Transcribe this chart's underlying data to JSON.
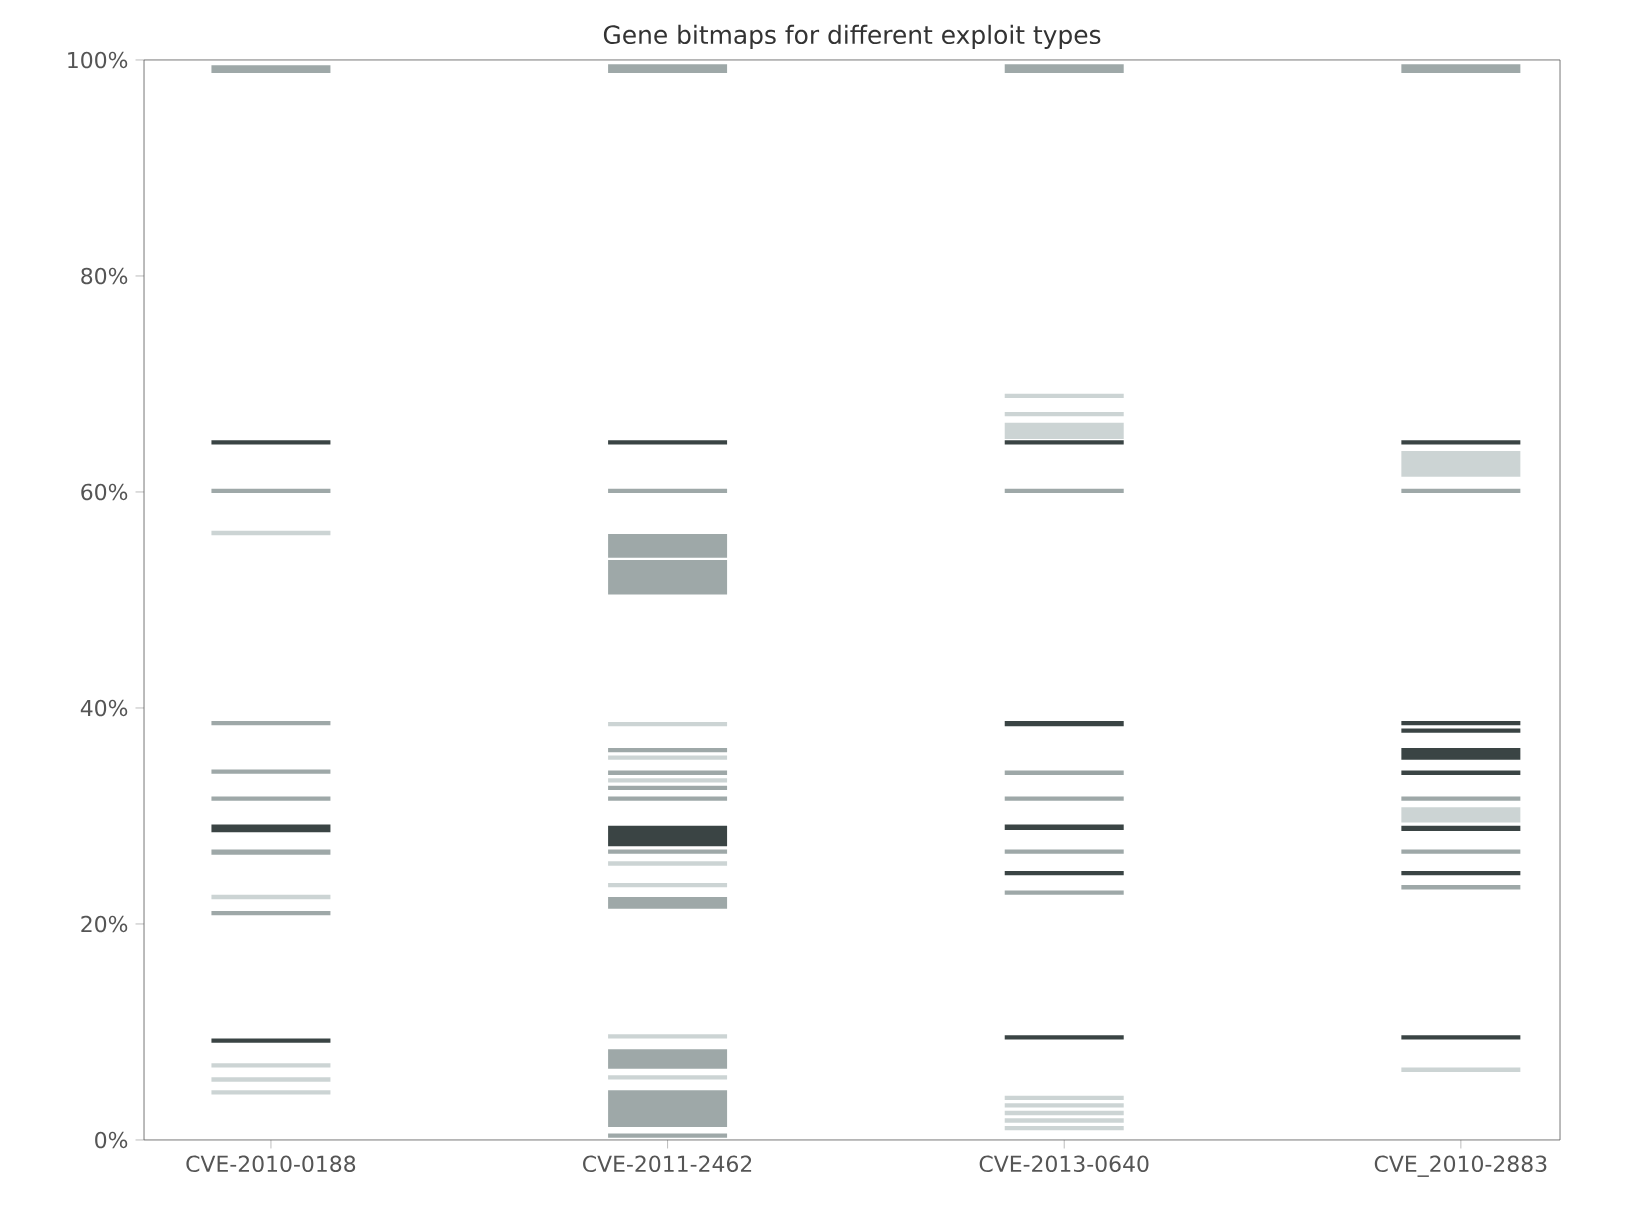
{
  "chart_data": {
    "type": "bar",
    "title": "Gene bitmaps for different exploit types",
    "categories": [
      "CVE-2010-0188",
      "CVE-2011-2462",
      "CVE-2013-0640",
      "CVE_2010-2883"
    ],
    "ylim": [
      0,
      100
    ],
    "yticks": [
      {
        "value": 0,
        "label": "0%"
      },
      {
        "value": 20,
        "label": "20%"
      },
      {
        "value": 40,
        "label": "40%"
      },
      {
        "value": 60,
        "label": "60%"
      },
      {
        "value": 80,
        "label": "80%"
      },
      {
        "value": 100,
        "label": "100%"
      }
    ],
    "grid": false,
    "series": [
      {
        "color": "#3a4444",
        "x": [
          "CVE-2010-0188",
          "CVE-2010-0188",
          "CVE-2010-0188",
          "CVE-2011-2462",
          "CVE-2011-2462",
          "CVE-2013-0640",
          "CVE-2013-0640",
          "CVE-2013-0640",
          "CVE-2013-0640",
          "CVE-2013-0640",
          "CVE_2010-2883",
          "CVE_2010-2883",
          "CVE_2010-2883",
          "CVE_2010-2883",
          "CVE_2010-2883",
          "CVE_2010-2883",
          "CVE_2010-2883",
          "CVE_2010-2883"
        ],
        "base": [
          64.4,
          28.5,
          9.0,
          64.4,
          27.2,
          64.4,
          38.3,
          28.7,
          24.5,
          9.3,
          64.4,
          38.4,
          37.7,
          35.2,
          33.8,
          28.6,
          24.5,
          9.3
        ],
        "values": [
          0.4,
          0.7,
          0.4,
          0.4,
          1.9,
          0.4,
          0.5,
          0.5,
          0.4,
          0.4,
          0.4,
          0.4,
          0.4,
          1.1,
          0.4,
          0.5,
          0.4,
          0.4
        ]
      },
      {
        "color": "#9ea8a8",
        "x": [
          "CVE-2010-0188",
          "CVE-2010-0188",
          "CVE-2010-0188",
          "CVE-2010-0188",
          "CVE-2010-0188",
          "CVE-2010-0188",
          "CVE-2010-0188",
          "CVE-2011-2462",
          "CVE-2011-2462",
          "CVE-2011-2462",
          "CVE-2011-2462",
          "CVE-2011-2462",
          "CVE-2011-2462",
          "CVE-2011-2462",
          "CVE-2011-2462",
          "CVE-2011-2462",
          "CVE-2011-2462",
          "CVE-2011-2462",
          "CVE-2011-2462",
          "CVE-2011-2462",
          "CVE-2013-0640",
          "CVE-2013-0640",
          "CVE-2013-0640",
          "CVE-2013-0640",
          "CVE-2013-0640",
          "CVE-2013-0640",
          "CVE_2010-2883",
          "CVE_2010-2883",
          "CVE_2010-2883",
          "CVE_2010-2883",
          "CVE_2010-2883"
        ],
        "base": [
          98.8,
          59.9,
          38.4,
          33.9,
          31.4,
          26.4,
          20.8,
          98.8,
          59.9,
          53.9,
          50.5,
          35.9,
          33.8,
          32.4,
          31.4,
          26.5,
          21.4,
          6.6,
          1.2,
          0.2,
          98.8,
          59.9,
          33.8,
          31.4,
          26.5,
          22.7,
          98.8,
          59.9,
          31.4,
          26.5,
          23.2
        ],
        "values": [
          0.7,
          0.4,
          0.4,
          0.4,
          0.4,
          0.5,
          0.4,
          0.8,
          0.4,
          2.2,
          3.2,
          0.4,
          0.4,
          0.4,
          0.4,
          0.4,
          1.1,
          1.8,
          3.4,
          0.4,
          0.8,
          0.4,
          0.4,
          0.4,
          0.4,
          0.4,
          0.8,
          0.4,
          0.4,
          0.4,
          0.4
        ]
      },
      {
        "color": "#ccd4d4",
        "x": [
          "CVE-2010-0188",
          "CVE-2010-0188",
          "CVE-2010-0188",
          "CVE-2010-0188",
          "CVE-2010-0188",
          "CVE-2011-2462",
          "CVE-2011-2462",
          "CVE-2011-2462",
          "CVE-2011-2462",
          "CVE-2011-2462",
          "CVE-2011-2462",
          "CVE-2011-2462",
          "CVE-2013-0640",
          "CVE-2013-0640",
          "CVE-2013-0640",
          "CVE-2013-0640",
          "CVE-2013-0640",
          "CVE-2013-0640",
          "CVE-2013-0640",
          "CVE-2013-0640",
          "CVE_2010-2883",
          "CVE_2010-2883",
          "CVE_2010-2883"
        ],
        "base": [
          56.0,
          22.3,
          6.7,
          5.4,
          4.2,
          38.3,
          35.2,
          33.1,
          25.4,
          23.4,
          9.4,
          5.6,
          68.7,
          67.0,
          64.9,
          3.7,
          3.0,
          2.3,
          1.6,
          0.9,
          61.4,
          29.4,
          6.3
        ],
        "values": [
          0.4,
          0.4,
          0.4,
          0.4,
          0.4,
          0.4,
          0.4,
          0.4,
          0.4,
          0.4,
          0.4,
          0.4,
          0.4,
          0.4,
          1.5,
          0.4,
          0.4,
          0.4,
          0.4,
          0.4,
          2.4,
          1.4,
          0.4
        ]
      }
    ]
  }
}
